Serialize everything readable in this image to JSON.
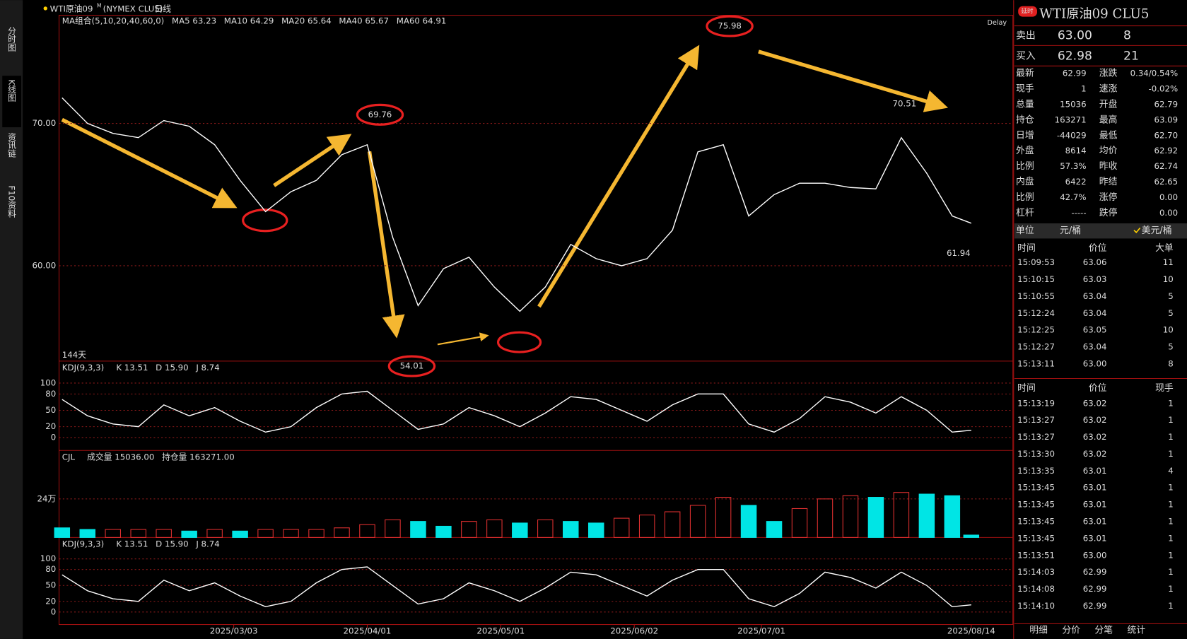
{
  "sidebar_tabs": [
    "分时图",
    "K线图",
    "资讯链",
    "F10资料"
  ],
  "header": {
    "symbol": "WTI原油09",
    "sup": "M",
    "exchange": "(NYMEX CLU5)",
    "period": "日线"
  },
  "chart_data": [
    {
      "type": "line",
      "legend": [
        {
          "text": "MA组合(5,10,20,40,60,0)",
          "color": "#dddddd"
        },
        {
          "text": "MA5 63.23",
          "color": "#ffffff"
        },
        {
          "text": "MA10 64.29",
          "color": "#e6e600"
        },
        {
          "text": "MA20 65.64",
          "color": "#e000e0"
        },
        {
          "text": "MA40 65.67",
          "color": "#00cc00"
        },
        {
          "text": "MA60 64.91",
          "color": "#999999"
        }
      ],
      "delay": "Delay",
      "days_label": "144天",
      "color": "#ffffff",
      "x": [
        0,
        4,
        8,
        12,
        16,
        20,
        24,
        28,
        32,
        36,
        40,
        44,
        48,
        52,
        56,
        60,
        64,
        68,
        72,
        76,
        80,
        84,
        88,
        92,
        96,
        100,
        104,
        108,
        112,
        116,
        120,
        124,
        128,
        132,
        136,
        140,
        143
      ],
      "values": [
        71.8,
        70.0,
        69.3,
        69.0,
        70.2,
        69.8,
        68.5,
        66.0,
        63.8,
        65.2,
        66.0,
        67.8,
        68.5,
        62.0,
        57.2,
        59.8,
        60.6,
        58.5,
        56.8,
        58.5,
        61.5,
        60.5,
        60.0,
        60.5,
        62.5,
        68.0,
        68.5,
        63.5,
        65.0,
        65.8,
        65.8,
        65.5,
        65.4,
        69.0,
        66.5,
        63.5,
        62.99
      ],
      "xlim": [
        0,
        143
      ],
      "ylim": [
        53.3,
        77.6
      ],
      "yticks": [
        {
          "value": 60,
          "label": "60.00"
        },
        {
          "value": 70,
          "label": "70.00"
        }
      ],
      "xticks": [
        {
          "value": 27,
          "label": "2025/03/03"
        },
        {
          "value": 48,
          "label": "2025/04/01"
        },
        {
          "value": 69,
          "label": "2025/05/01"
        },
        {
          "value": 90,
          "label": "2025/06/02"
        },
        {
          "value": 110,
          "label": "2025/07/01"
        },
        {
          "value": 143,
          "label": "2025/08/14"
        }
      ],
      "annotations": [
        {
          "x": 50,
          "value": 69.76,
          "circled": true
        },
        {
          "x": 55,
          "value": 54.01,
          "circled": true
        },
        {
          "x": 105,
          "value": 75.98,
          "circled": true
        },
        {
          "x": 132.5,
          "value": 70.51,
          "circled": false
        },
        {
          "x": 141,
          "value": 61.94,
          "circled": false
        }
      ]
    },
    {
      "type": "line",
      "indicator": "KDJ(9,3,3)",
      "legend": [
        {
          "text": "K 13.51",
          "color": "#ffffff"
        },
        {
          "text": "D 15.90",
          "color": "#e6e600"
        },
        {
          "text": "J 8.74",
          "color": "#e000e0"
        }
      ],
      "color": "#ffffff",
      "x": [
        0,
        4,
        8,
        12,
        16,
        20,
        24,
        28,
        32,
        36,
        40,
        44,
        48,
        52,
        56,
        60,
        64,
        68,
        72,
        76,
        80,
        84,
        88,
        92,
        96,
        100,
        104,
        108,
        112,
        116,
        120,
        124,
        128,
        132,
        136,
        140,
        143
      ],
      "values": [
        70,
        40,
        25,
        20,
        60,
        40,
        55,
        30,
        10,
        20,
        55,
        80,
        85,
        50,
        15,
        25,
        55,
        40,
        20,
        45,
        75,
        70,
        50,
        30,
        60,
        80,
        80,
        25,
        10,
        35,
        75,
        65,
        45,
        75,
        50,
        10,
        13.51
      ],
      "xlim": [
        0,
        143
      ],
      "ylim": [
        -23.6,
        138.9
      ],
      "yticks": [
        0,
        20,
        50,
        80,
        100
      ]
    },
    {
      "type": "bar",
      "indicator": "CJL",
      "legend": [
        {
          "text": "成交量 15036.00",
          "color": "#dddddd"
        },
        {
          "text": "持仓量 163271.00",
          "color": "#dddddd"
        }
      ],
      "up_color": "#e03030",
      "down_color": "#00e5e5",
      "x": [
        0,
        4,
        8,
        12,
        16,
        20,
        24,
        28,
        32,
        36,
        40,
        44,
        48,
        52,
        56,
        60,
        64,
        68,
        72,
        76,
        80,
        84,
        88,
        92,
        96,
        100,
        104,
        108,
        112,
        116,
        120,
        124,
        128,
        132,
        136,
        140,
        143
      ],
      "values": [
        60000,
        50000,
        50000,
        50000,
        50000,
        40000,
        50000,
        40000,
        50000,
        50000,
        50000,
        60000,
        80000,
        110000,
        100000,
        70000,
        100000,
        110000,
        90000,
        110000,
        100000,
        90000,
        120000,
        140000,
        160000,
        200000,
        250000,
        200000,
        100000,
        180000,
        240000,
        260000,
        250000,
        280000,
        270000,
        260000,
        15036
      ],
      "xlim": [
        0,
        143
      ],
      "ylim": [
        0,
        537000
      ],
      "yticks": [
        {
          "value": 240000,
          "label": "24万"
        }
      ]
    }
  ],
  "quote": {
    "badge": "延时",
    "title": "WTI原油09 CLU5",
    "ask": [
      "卖出",
      "63.00",
      "8"
    ],
    "bid": [
      "买入",
      "62.98",
      "21"
    ],
    "stats": [
      [
        "最新",
        "62.99",
        "涨跌",
        "0.34/0.54%"
      ],
      [
        "现手",
        "1",
        "速涨",
        "-0.02%"
      ],
      [
        "总量",
        "15036",
        "开盘",
        "62.79"
      ],
      [
        "持仓",
        "163271",
        "最高",
        "63.09"
      ],
      [
        "日增",
        "-44029",
        "最低",
        "62.70"
      ],
      [
        "外盘",
        "8614",
        "均价",
        "62.92"
      ],
      [
        "比例",
        "57.3%",
        "昨收",
        "62.74"
      ],
      [
        "内盘",
        "6422",
        "昨结",
        "62.65"
      ],
      [
        "比例",
        "42.7%",
        "涨停",
        "0.00"
      ],
      [
        "杠杆",
        "-----",
        "跌停",
        "0.00"
      ]
    ],
    "unit": [
      "单位",
      "元/桶",
      "美元/桶"
    ]
  },
  "big_trades": {
    "headers": [
      "时间",
      "价位",
      "大单"
    ],
    "rows": [
      [
        "15:09:53",
        "63.06",
        "11"
      ],
      [
        "15:10:15",
        "63.03",
        "10"
      ],
      [
        "15:10:55",
        "63.04",
        "5"
      ],
      [
        "15:12:24",
        "63.04",
        "5"
      ],
      [
        "15:12:25",
        "63.05",
        "10"
      ],
      [
        "15:12:27",
        "63.04",
        "5"
      ],
      [
        "15:13:11",
        "63.00",
        "8"
      ]
    ],
    "colors": [
      "#ff3030",
      "#00dd00",
      "#00dd00",
      "#ff3030",
      "#ff3030",
      "#00dd00",
      "#00dd00"
    ]
  },
  "ticks": {
    "headers": [
      "时间",
      "价位",
      "现手"
    ],
    "rows": [
      [
        "15:13:19",
        "63.02",
        "1"
      ],
      [
        "15:13:27",
        "63.02",
        "1"
      ],
      [
        "15:13:27",
        "63.02",
        "1"
      ],
      [
        "15:13:30",
        "63.02",
        "1"
      ],
      [
        "15:13:35",
        "63.01",
        "4"
      ],
      [
        "15:13:45",
        "63.01",
        "1"
      ],
      [
        "15:13:45",
        "63.01",
        "1"
      ],
      [
        "15:13:45",
        "63.01",
        "1"
      ],
      [
        "15:13:45",
        "63.01",
        "1"
      ],
      [
        "15:13:51",
        "63.00",
        "1"
      ],
      [
        "15:14:03",
        "62.99",
        "1"
      ],
      [
        "15:14:08",
        "62.99",
        "1"
      ],
      [
        "15:14:10",
        "62.99",
        "1"
      ]
    ],
    "colors": [
      "#00dd00",
      "#00dd00",
      "#00dd00",
      "#ff3030",
      "#00dd00",
      "#00dd00",
      "#00dd00",
      "#00dd00",
      "#00dd00",
      "#00dd00",
      "#00dd00",
      "#00dd00",
      "#ff3030"
    ]
  },
  "bottom_tabs": [
    "明细",
    "分价",
    "分笔",
    "统计"
  ]
}
